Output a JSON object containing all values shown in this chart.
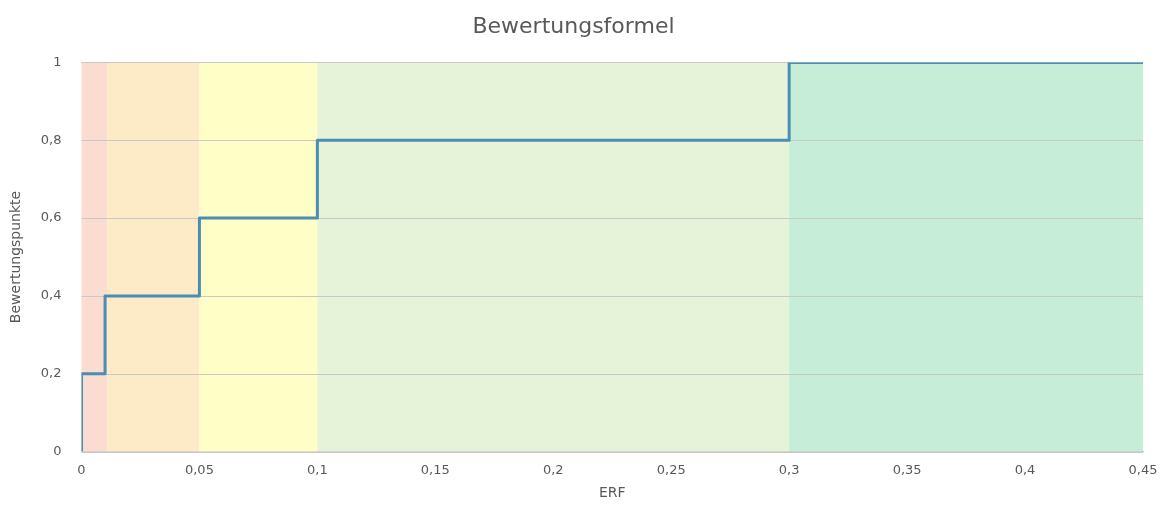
{
  "chart_data": {
    "type": "step",
    "title": "Bewertungsformel",
    "xlabel": "ERF",
    "ylabel": "Bewertungspunkte",
    "x": [
      0,
      0,
      0.01,
      0.05,
      0.1,
      0.3,
      0.45
    ],
    "series": [
      {
        "color": "#4a8db5",
        "values": [
          0,
          0.2,
          0.4,
          0.6,
          0.8,
          1,
          1
        ]
      }
    ],
    "xlim": [
      0,
      0.45
    ],
    "ylim": [
      0,
      1
    ],
    "xticks": [
      0,
      {
        "value": 0.05,
        "label": "0,05"
      },
      {
        "value": 0.1,
        "label": "0,1"
      },
      {
        "value": 0.15,
        "label": "0,15"
      },
      {
        "value": 0.2,
        "label": "0,2"
      },
      {
        "value": 0.25,
        "label": "0,25"
      },
      {
        "value": 0.3,
        "label": "0,3"
      },
      {
        "value": 0.35,
        "label": "0,35"
      },
      {
        "value": 0.4,
        "label": "0,4"
      },
      {
        "value": 0.45,
        "label": "0,45"
      }
    ],
    "yticks": [
      0,
      {
        "value": 0.2,
        "label": "0,2"
      },
      {
        "value": 0.4,
        "label": "0,4"
      },
      {
        "value": 0.6,
        "label": "0,6"
      },
      {
        "value": 0.8,
        "label": "0,8"
      },
      1
    ],
    "bands": [
      {
        "axis": "x",
        "from": 0,
        "to": 0.011,
        "color": "#fbdcd0"
      },
      {
        "axis": "x",
        "from": 0.011,
        "to": 0.05,
        "color": "#fdebc8"
      },
      {
        "axis": "x",
        "from": 0.05,
        "to": 0.1,
        "color": "#fefec6"
      },
      {
        "axis": "x",
        "from": 0.1,
        "to": 0.3,
        "color": "#e6f3d9"
      },
      {
        "axis": "x",
        "from": 0.3,
        "to": 0.45,
        "color": "#c6edd8"
      }
    ],
    "grid": "y",
    "legend": false,
    "marker": "none",
    "line_style": "solid"
  }
}
